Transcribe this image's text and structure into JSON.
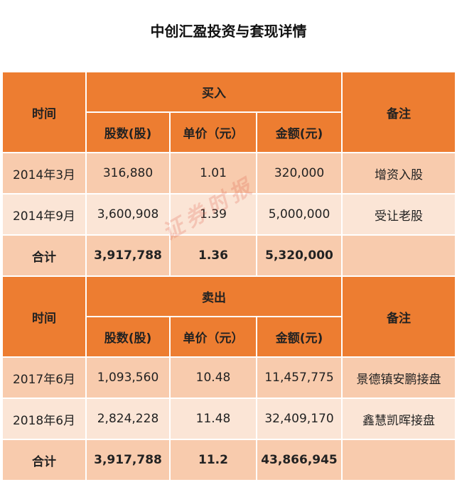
{
  "title": "中创汇盈投资与套现详情",
  "watermark": "证券时报",
  "buy": {
    "time_label": "时间",
    "group_label": "买入",
    "note_label": "备注",
    "cols": [
      "股数(股)",
      "单价（元）",
      "金额(元)"
    ],
    "rows": [
      {
        "time": "2014年3月",
        "shares": "316,880",
        "price": "1.01",
        "amount": "320,000",
        "note": "增资入股"
      },
      {
        "time": "2014年9月",
        "shares": "3,600,908",
        "price": "1.39",
        "amount": "5,000,000",
        "note": "受让老股"
      }
    ],
    "total": {
      "label": "合计",
      "shares": "3,917,788",
      "price": "1.36",
      "amount": "5,320,000",
      "note": ""
    }
  },
  "sell": {
    "time_label": "时间",
    "group_label": "卖出",
    "note_label": "备注",
    "cols": [
      "股数(股)",
      "单价（元）",
      "金额(元)"
    ],
    "rows": [
      {
        "time": "2017年6月",
        "shares": "1,093,560",
        "price": "10.48",
        "amount": "11,457,775",
        "note": "景德镇安鹏接盘"
      },
      {
        "time": "2018年6月",
        "shares": "2,824,228",
        "price": "11.48",
        "amount": "32,409,170",
        "note": "鑫慧凯晖接盘"
      }
    ],
    "total": {
      "label": "合计",
      "shares": "3,917,788",
      "price": "11.2",
      "amount": "43,866,945",
      "note": ""
    }
  }
}
